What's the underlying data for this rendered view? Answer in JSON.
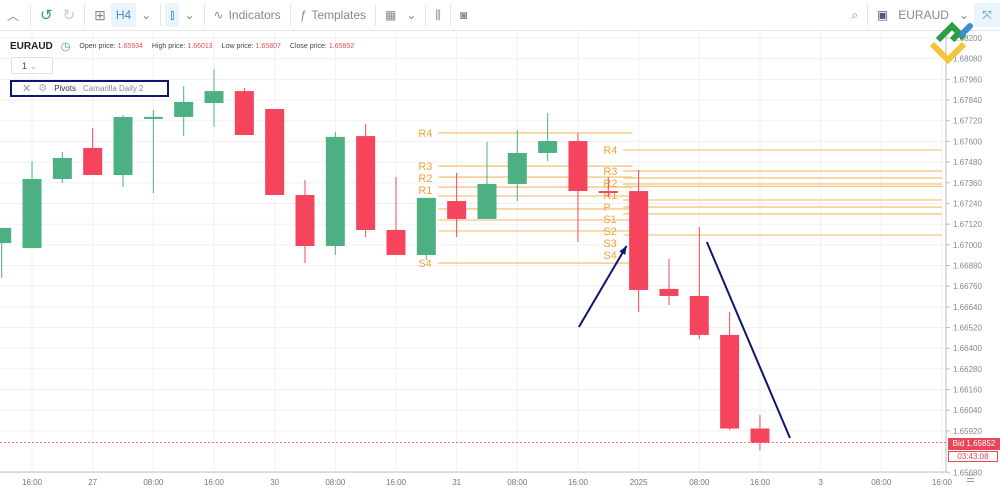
{
  "toolbar": {
    "timeframe": "H4",
    "indicators": "Indicators",
    "templates": "Templates",
    "symbol": "EURAUD"
  },
  "header": {
    "symbol": "EURAUD",
    "open_label": "Open price:",
    "open": "1.65934",
    "high_label": "High price:",
    "high": "1.66013",
    "low_label": "Low price:",
    "low": "1.65807",
    "close_label": "Close price:",
    "close": "1.65852",
    "layout_select": "1"
  },
  "legend": {
    "name": "Pivots",
    "params": "Camarilla Daily 2"
  },
  "bid": {
    "label": "Bid 1.65852",
    "timer": "03:43:08"
  },
  "colors": {
    "up": "#4cb083",
    "down": "#f5455c",
    "pivot_line": "#f3c57e",
    "pivot_label": "#eea43a",
    "drawing": "#101670",
    "bid": "#e8475a"
  },
  "chart_data": {
    "type": "candlestick",
    "timeframe": "H4",
    "price_ticks": [
      "1.68200",
      "1.68080",
      "1.67960",
      "1.67840",
      "1.67720",
      "1.67600",
      "1.67480",
      "1.67360",
      "1.67240",
      "1.67120",
      "1.67000",
      "1.66880",
      "1.66760",
      "1.66640",
      "1.66520",
      "1.66400",
      "1.66280",
      "1.66160",
      "1.66040",
      "1.65920",
      "1.65680"
    ],
    "ylim": [
      1.6568,
      1.682
    ],
    "time_labels": [
      "16:00",
      "27",
      "08:00",
      "16:00",
      "30",
      "08:00",
      "16:00",
      "31",
      "08:00",
      "16:00",
      "2025",
      "08:00",
      "16:00",
      "3",
      "08:00",
      "16:00"
    ],
    "candles": [
      {
        "o": 1.6701,
        "h": 1.67098,
        "l": 1.66807,
        "c": 1.67098
      },
      {
        "o": 1.66981,
        "h": 1.67486,
        "l": 1.66981,
        "c": 1.67382
      },
      {
        "o": 1.67382,
        "h": 1.67538,
        "l": 1.67359,
        "c": 1.67504
      },
      {
        "o": 1.67562,
        "h": 1.67678,
        "l": 1.67405,
        "c": 1.67405
      },
      {
        "o": 1.67405,
        "h": 1.67753,
        "l": 1.67335,
        "c": 1.67742
      },
      {
        "o": 1.67742,
        "h": 1.67782,
        "l": 1.67301,
        "c": 1.67742
      },
      {
        "o": 1.67742,
        "h": 1.67921,
        "l": 1.67631,
        "c": 1.67829
      },
      {
        "o": 1.67823,
        "h": 1.6802,
        "l": 1.67684,
        "c": 1.67892
      },
      {
        "o": 1.67892,
        "h": 1.6791,
        "l": 1.67637,
        "c": 1.67637
      },
      {
        "o": 1.67788,
        "h": 1.67788,
        "l": 1.67289,
        "c": 1.67289
      },
      {
        "o": 1.67289,
        "h": 1.67376,
        "l": 1.66894,
        "c": 1.66993
      },
      {
        "o": 1.66993,
        "h": 1.67655,
        "l": 1.66941,
        "c": 1.67626
      },
      {
        "o": 1.67631,
        "h": 1.67701,
        "l": 1.67045,
        "c": 1.67086
      },
      {
        "o": 1.67086,
        "h": 1.67393,
        "l": 1.66941,
        "c": 1.66941
      },
      {
        "o": 1.66941,
        "h": 1.67272,
        "l": 1.66912,
        "c": 1.67272
      },
      {
        "o": 1.67254,
        "h": 1.67417,
        "l": 1.67045,
        "c": 1.6715
      },
      {
        "o": 1.6715,
        "h": 1.67597,
        "l": 1.6715,
        "c": 1.67353
      },
      {
        "o": 1.67353,
        "h": 1.67666,
        "l": 1.67254,
        "c": 1.67533
      },
      {
        "o": 1.67533,
        "h": 1.67765,
        "l": 1.67486,
        "c": 1.67602
      },
      {
        "o": 1.67602,
        "h": 1.67649,
        "l": 1.67016,
        "c": 1.67312
      },
      {
        "o": 1.67312,
        "h": 1.67393,
        "l": 1.67277,
        "c": 1.67305
      },
      {
        "o": 1.67312,
        "h": 1.67434,
        "l": 1.6661,
        "c": 1.66738
      },
      {
        "o": 1.66744,
        "h": 1.66918,
        "l": 1.66651,
        "c": 1.66703
      },
      {
        "o": 1.66703,
        "h": 1.67103,
        "l": 1.66453,
        "c": 1.66477
      },
      {
        "o": 1.66477,
        "h": 1.6661,
        "l": 1.65925,
        "c": 1.65934
      },
      {
        "o": 1.65934,
        "h": 1.66013,
        "l": 1.65807,
        "c": 1.65852
      }
    ],
    "pivots": [
      {
        "from": 14,
        "to": 20.8,
        "levels": [
          [
            "R4",
            1.67649
          ],
          [
            "R3",
            1.67457
          ],
          [
            "R2",
            1.67393
          ],
          [
            "R1",
            1.67335
          ],
          [
            "P",
            1.67283
          ],
          [
            "S1",
            1.67208
          ],
          [
            "S2",
            1.67144
          ],
          [
            "S3",
            1.6708
          ],
          [
            "S4",
            1.66894
          ]
        ]
      },
      {
        "from": 20.1,
        "to": 31,
        "levels": [
          [
            "R4",
            1.6755
          ],
          [
            "R3",
            1.67428
          ],
          [
            "R2",
            1.67388
          ],
          [
            "R1",
            1.67353
          ],
          [
            "P",
            1.67339
          ],
          [
            "S1",
            1.6726
          ],
          [
            "S2",
            1.67219
          ],
          [
            "S3",
            1.67179
          ],
          [
            "S4",
            1.67057
          ]
        ]
      }
    ],
    "drawings": [
      {
        "type": "arrow",
        "from": [
          19.03,
          1.66523
        ],
        "to": [
          20.6,
          1.66993
        ]
      },
      {
        "type": "trendline",
        "from": [
          23.25,
          1.67016
        ],
        "to": [
          25.99,
          1.65879
        ]
      }
    ],
    "bid_price": 1.65852
  }
}
